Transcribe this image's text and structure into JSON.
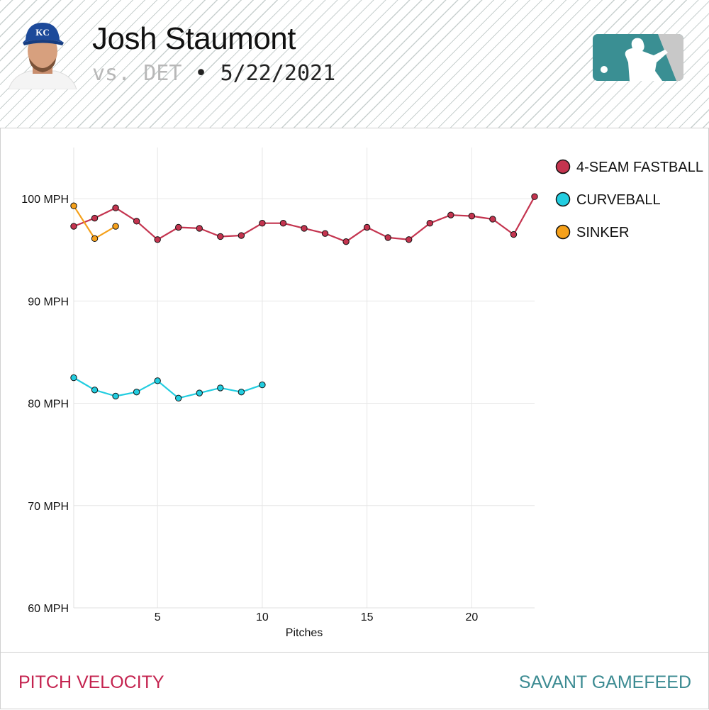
{
  "header": {
    "player_name": "Josh Staumont",
    "opponent": "vs. DET",
    "separator": "•",
    "date": "5/22/2021",
    "team_cap_initials": "KC"
  },
  "footer": {
    "left_label": "PITCH VELOCITY",
    "right_label": "SAVANT GAMEFEED"
  },
  "colors": {
    "fastball": "#c4344f",
    "curveball": "#22cde0",
    "sinker": "#f5a01a",
    "footer_left": "#c4234f",
    "footer_right": "#3c8b92",
    "logo": "#3a8f93"
  },
  "chart_data": {
    "type": "line",
    "xlabel": "Pitches",
    "ylabel": "",
    "xlim": [
      1,
      23
    ],
    "ylim": [
      60,
      105
    ],
    "xticks": [
      5,
      10,
      15,
      20
    ],
    "yticks": [
      100,
      90,
      80,
      70,
      60
    ],
    "ytick_labels": [
      "100 MPH",
      "90 MPH",
      "80 MPH",
      "70 MPH",
      "60 MPH"
    ],
    "legend_position": "top-right",
    "series": [
      {
        "name": "4-SEAM FASTBALL",
        "color": "#c4344f",
        "x": [
          1,
          2,
          3,
          4,
          5,
          6,
          7,
          8,
          9,
          10,
          11,
          12,
          13,
          14,
          15,
          16,
          17,
          18,
          19,
          20,
          21,
          22,
          23
        ],
        "values": [
          97.3,
          98.1,
          99.1,
          97.8,
          96.0,
          97.2,
          97.1,
          96.3,
          96.4,
          97.6,
          97.6,
          97.1,
          96.6,
          95.8,
          97.2,
          96.2,
          96.0,
          97.6,
          98.4,
          98.3,
          98.0,
          96.5,
          100.2
        ]
      },
      {
        "name": "CURVEBALL",
        "color": "#22cde0",
        "x": [
          1,
          2,
          3,
          4,
          5,
          6,
          7,
          8,
          9,
          10
        ],
        "values": [
          82.5,
          81.3,
          80.7,
          81.1,
          82.2,
          80.5,
          81.0,
          81.5,
          81.1,
          81.8
        ]
      },
      {
        "name": "SINKER",
        "color": "#f5a01a",
        "x": [
          1,
          2,
          3
        ],
        "values": [
          99.3,
          96.1,
          97.3
        ]
      }
    ]
  }
}
